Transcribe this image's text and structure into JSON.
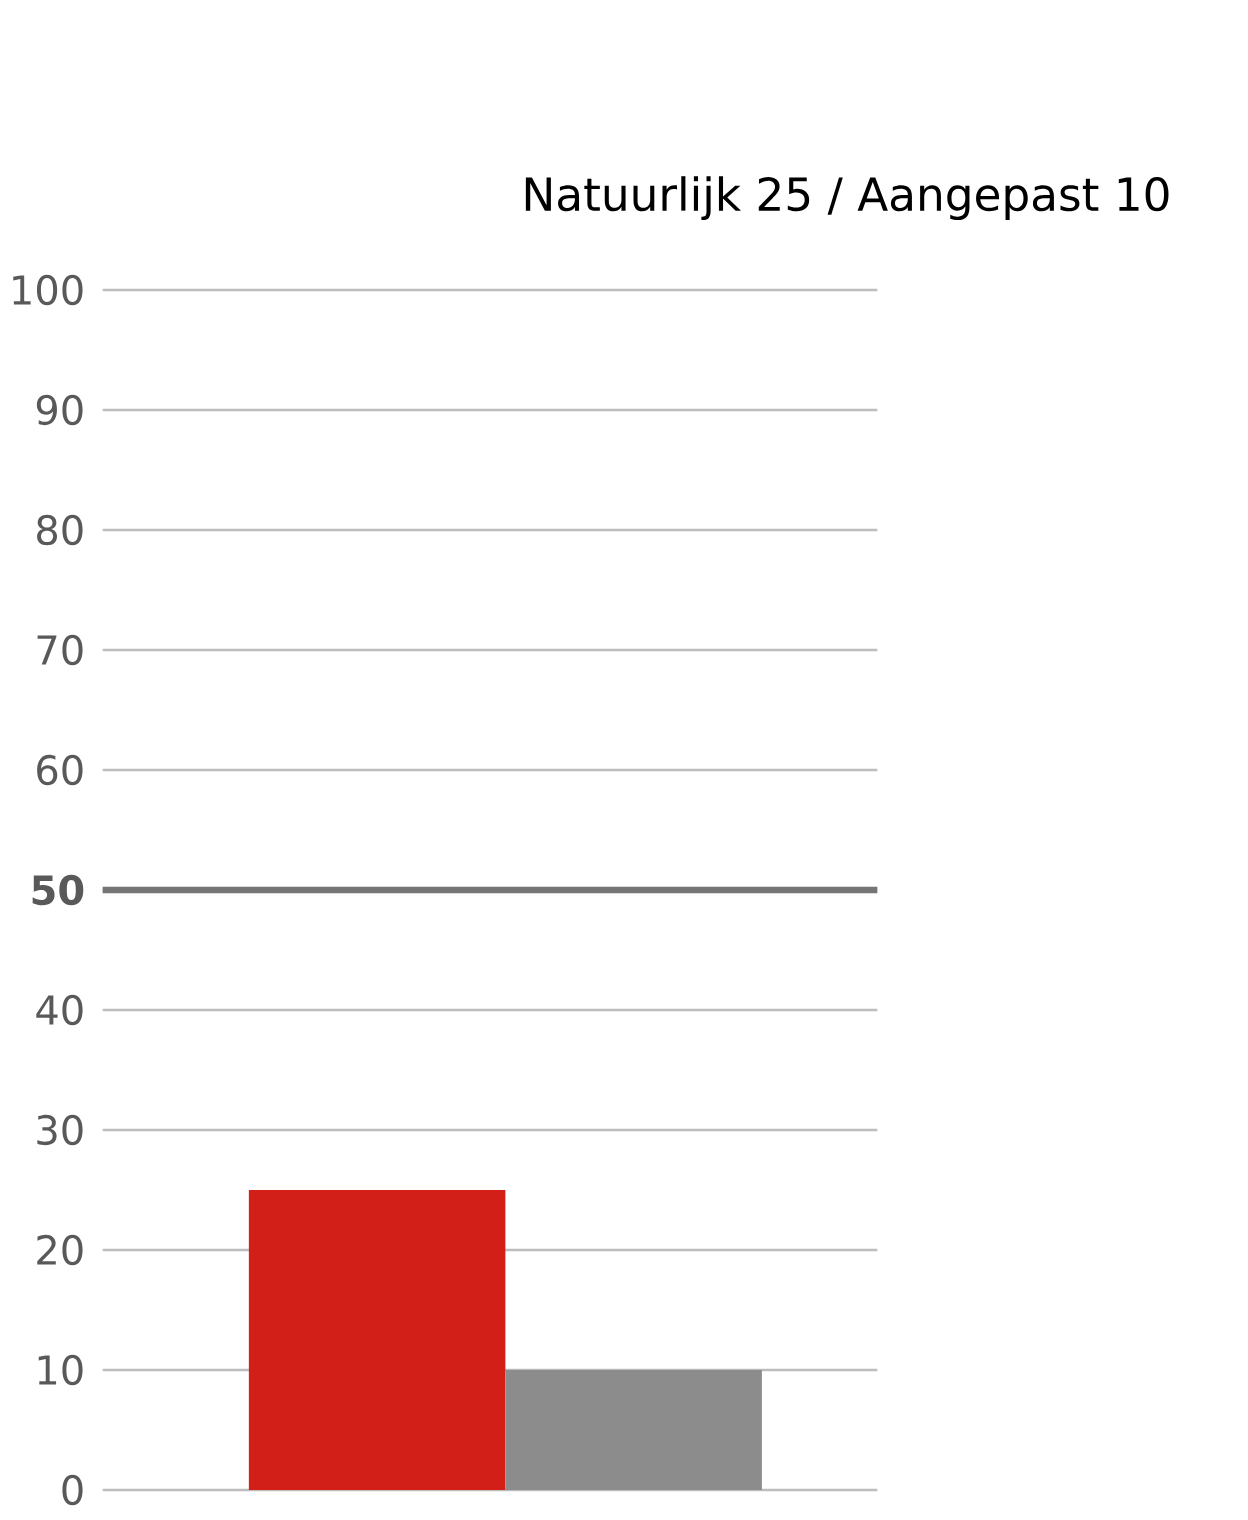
{
  "chart_data": {
    "type": "bar",
    "title": "Natuurlijk 25 / Aangepast 10",
    "categories": [
      null,
      null
    ],
    "values": [
      25,
      10
    ],
    "colors": [
      "#d21f17",
      "#8c8c8c"
    ],
    "ylim": [
      0,
      100
    ],
    "yticks": [
      0,
      10,
      20,
      30,
      40,
      50,
      60,
      70,
      80,
      90,
      100
    ],
    "grid": "y",
    "ref_lines": [
      {
        "axis": "y",
        "value": 50,
        "color": "#757575"
      }
    ]
  }
}
